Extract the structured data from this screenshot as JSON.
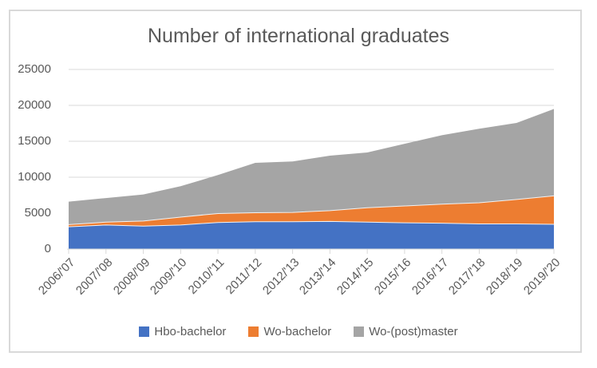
{
  "chart_data": {
    "type": "area",
    "stacked": true,
    "title": "Number of international graduates",
    "categories": [
      "2006/'07",
      "2007/'08",
      "2008/'09",
      "2009/'10",
      "2010/'11",
      "2011/'12",
      "2012/'13",
      "2013/'14",
      "2014/'15",
      "2015/'16",
      "2016/'17",
      "2017/'18",
      "2018/'19",
      "2019/'20"
    ],
    "series": [
      {
        "name": "Hbo-bachelor",
        "color": "#4472C4",
        "values": [
          3100,
          3350,
          3200,
          3350,
          3700,
          3800,
          3800,
          3850,
          3750,
          3650,
          3600,
          3500,
          3500,
          3450
        ]
      },
      {
        "name": "Wo-bachelor",
        "color": "#ED7D31",
        "values": [
          300,
          400,
          700,
          1100,
          1250,
          1250,
          1300,
          1500,
          2000,
          2350,
          2650,
          2950,
          3400,
          3950
        ]
      },
      {
        "name": "Wo-(post)master",
        "color": "#A5A5A5",
        "values": [
          3200,
          3350,
          3700,
          4300,
          5350,
          6950,
          7100,
          7650,
          7700,
          8650,
          9600,
          10300,
          10650,
          12100
        ]
      }
    ],
    "xlabel": "",
    "ylabel": "",
    "ylim": [
      0,
      25000
    ],
    "yticks": [
      0,
      5000,
      10000,
      15000,
      20000,
      25000
    ],
    "grid": true,
    "legend_position": "bottom"
  },
  "colors": {
    "background": "#FFFFFF",
    "frame_border": "#D9D9D9",
    "gridline": "#D9D9D9",
    "axis_line": "#D9D9D9",
    "tick_mark": "#D9D9D9",
    "text": "#595959",
    "series_seam": "#F2F2F2"
  }
}
